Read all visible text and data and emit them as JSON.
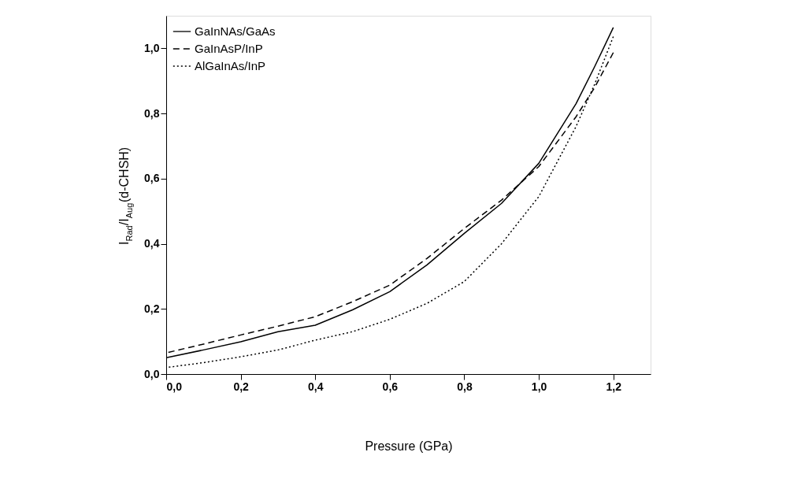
{
  "chart_data": {
    "type": "line",
    "xlabel": "Pressure (GPa)",
    "ylabel": "I$_{Rad}$/I$_{Aug}$(d-CHSH)",
    "x": [
      0,
      0.1,
      0.2,
      0.3,
      0.4,
      0.5,
      0.6,
      0.7,
      0.8,
      0.9,
      1.0,
      1.1,
      1.15,
      1.2
    ],
    "series": [
      {
        "name": "GaInNAs/GaAs",
        "color": "#000000",
        "line_style": "solid",
        "values": [
          0.05,
          0.074,
          0.099,
          0.13,
          0.15,
          0.197,
          0.253,
          0.335,
          0.432,
          0.524,
          0.647,
          0.83,
          0.944,
          1.064
        ]
      },
      {
        "name": "GaInAsP/InP",
        "color": "#000000",
        "line_style": "dashed",
        "values": [
          0.065,
          0.092,
          0.12,
          0.147,
          0.176,
          0.222,
          0.273,
          0.355,
          0.447,
          0.534,
          0.637,
          0.79,
          0.88,
          0.987
        ]
      },
      {
        "name": "AlGaInAs/InP",
        "color": "#000000",
        "line_style": "dotted",
        "values": [
          0.02,
          0.035,
          0.053,
          0.074,
          0.104,
          0.13,
          0.168,
          0.217,
          0.284,
          0.4,
          0.545,
          0.76,
          0.89,
          1.036
        ]
      }
    ],
    "xlim": [
      0,
      1.3
    ],
    "ylim": [
      0,
      1.1
    ],
    "xticks": [
      {
        "value": 0,
        "label": "0,0"
      },
      {
        "value": 0.2,
        "label": "0,2"
      },
      {
        "value": 0.4,
        "label": "0,4"
      },
      {
        "value": 0.6,
        "label": "0,6"
      },
      {
        "value": 0.8,
        "label": "0,8"
      },
      {
        "value": 1.0,
        "label": "1,0"
      },
      {
        "value": 1.2,
        "label": "1,2"
      }
    ],
    "yticks": [
      {
        "value": 0,
        "label": "0,0"
      },
      {
        "value": 0.2,
        "label": "0,2"
      },
      {
        "value": 0.4,
        "label": "0,4"
      },
      {
        "value": 0.6,
        "label": "0,6"
      },
      {
        "value": 0.8,
        "label": "0,8"
      },
      {
        "value": 1.0,
        "label": "1,0"
      }
    ],
    "grid": false,
    "legend": "top left",
    "marker": "none"
  }
}
